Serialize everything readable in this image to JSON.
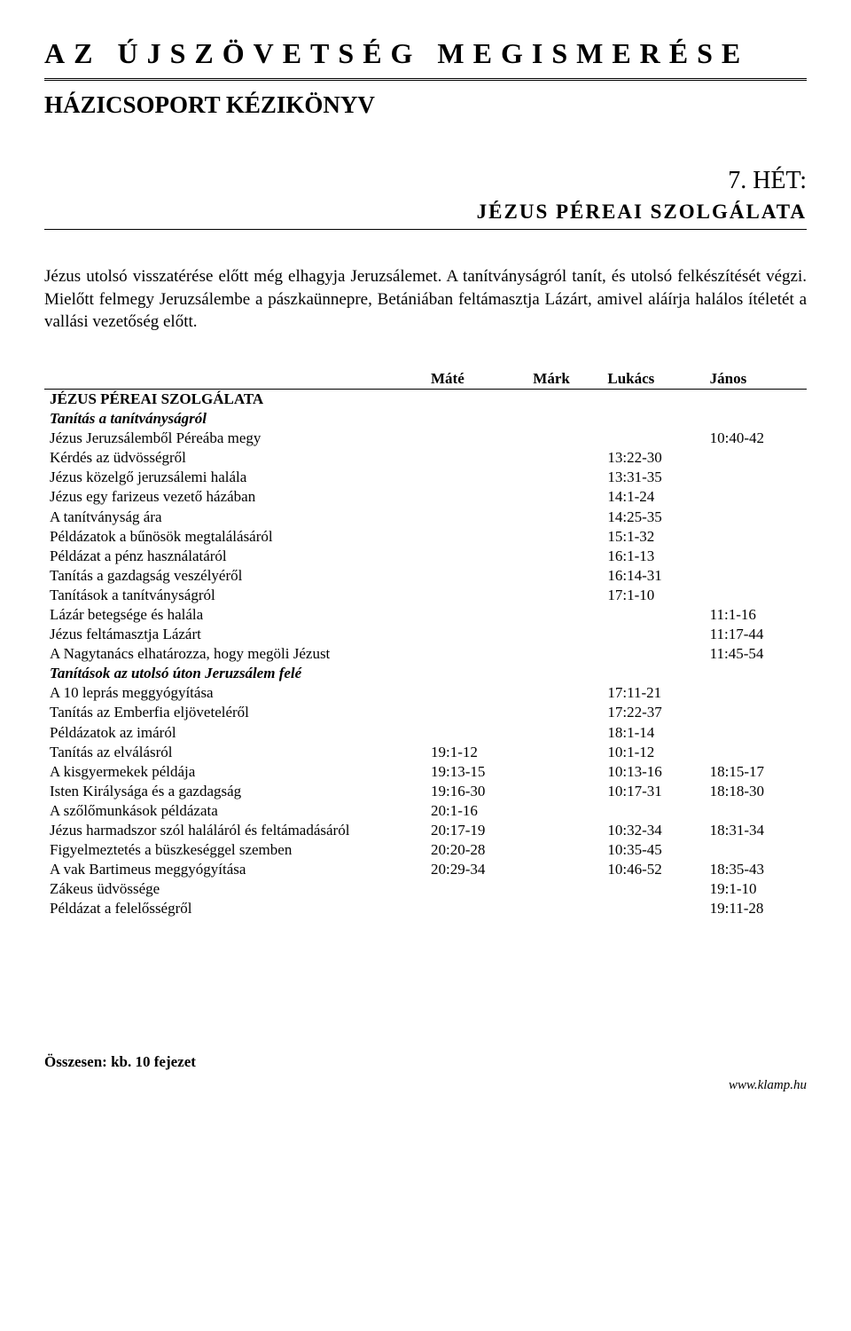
{
  "header": {
    "main_title": "AZ ÚJSZÖVETSÉG MEGISMERÉSE",
    "sub_title": "HÁZICSOPORT KÉZIKÖNYV",
    "week_prefix": "7. ",
    "week_word": "HÉT:",
    "week_subtitle": "JÉZUS PÉREAI SZOLGÁLATA"
  },
  "intro": "Jézus utolsó visszatérése előtt még elhagyja Jeruzsálemet. A tanítványságról tanít, és utolsó felkészítését végzi. Mielőtt felmegy Jeruzsálembe a pászkaünnepre, Betániában feltámasztja Lázárt, amivel aláírja halálos ítéletét a vallási vezetőség előtt.",
  "table": {
    "columns": [
      "",
      "Máté",
      "Márk",
      "Lukács",
      "János"
    ],
    "rows": [
      {
        "kind": "section",
        "desc": "JÉZUS PÉREAI SZOLGÁLATA"
      },
      {
        "kind": "subsection",
        "desc": "Tanítás a tanítványságról"
      },
      {
        "desc": "Jézus Jeruzsálemből Péreába megy",
        "mate": "",
        "mark": "",
        "lukacs": "",
        "janos": "10:40-42"
      },
      {
        "desc": "Kérdés az üdvösségről",
        "mate": "",
        "mark": "",
        "lukacs": "13:22-30",
        "janos": ""
      },
      {
        "desc": "Jézus közelgő jeruzsálemi halála",
        "mate": "",
        "mark": "",
        "lukacs": "13:31-35",
        "janos": ""
      },
      {
        "desc": "Jézus egy farizeus vezető házában",
        "mate": "",
        "mark": "",
        "lukacs": "14:1-24",
        "janos": ""
      },
      {
        "desc": "A tanítványság ára",
        "mate": "",
        "mark": "",
        "lukacs": "14:25-35",
        "janos": ""
      },
      {
        "desc": "Példázatok a bűnösök megtalálásáról",
        "mate": "",
        "mark": "",
        "lukacs": "15:1-32",
        "janos": ""
      },
      {
        "desc": "Példázat a pénz használatáról",
        "mate": "",
        "mark": "",
        "lukacs": "16:1-13",
        "janos": ""
      },
      {
        "desc": "Tanítás a gazdagság veszélyéről",
        "mate": "",
        "mark": "",
        "lukacs": "16:14-31",
        "janos": ""
      },
      {
        "desc": "Tanítások a tanítványságról",
        "mate": "",
        "mark": "",
        "lukacs": "17:1-10",
        "janos": ""
      },
      {
        "desc": "Lázár betegsége és halála",
        "mate": "",
        "mark": "",
        "lukacs": "",
        "janos": "11:1-16"
      },
      {
        "desc": "Jézus feltámasztja Lázárt",
        "mate": "",
        "mark": "",
        "lukacs": "",
        "janos": "11:17-44"
      },
      {
        "desc": "A Nagytanács elhatározza, hogy megöli Jézust",
        "mate": "",
        "mark": "",
        "lukacs": "",
        "janos": "11:45-54"
      },
      {
        "kind": "subsection",
        "desc": "Tanítások az utolsó úton Jeruzsálem felé"
      },
      {
        "desc": "A 10 leprás meggyógyítása",
        "mate": "",
        "mark": "",
        "lukacs": "17:11-21",
        "janos": ""
      },
      {
        "desc": "Tanítás az Emberfia eljöveteléről",
        "mate": "",
        "mark": "",
        "lukacs": "17:22-37",
        "janos": ""
      },
      {
        "desc": "Példázatok az imáról",
        "mate": "",
        "mark": "",
        "lukacs": "18:1-14",
        "janos": ""
      },
      {
        "desc": "Tanítás az elválásról",
        "mate": "19:1-12",
        "mark": "",
        "lukacs": "10:1-12",
        "janos": ""
      },
      {
        "desc": "A kisgyermekek példája",
        "mate": "19:13-15",
        "mark": "",
        "lukacs": "10:13-16",
        "janos": "18:15-17"
      },
      {
        "desc": "Isten Királysága és a gazdagság",
        "mate": "19:16-30",
        "mark": "",
        "lukacs": "10:17-31",
        "janos": "18:18-30"
      },
      {
        "desc": "A szőlőmunkások példázata",
        "mate": "20:1-16",
        "mark": "",
        "lukacs": "",
        "janos": ""
      },
      {
        "desc": "Jézus harmadszor szól haláláról és feltámadásáról",
        "mate": "20:17-19",
        "mark": "",
        "lukacs": "10:32-34",
        "janos": "18:31-34"
      },
      {
        "desc": "Figyelmeztetés a büszkeséggel szemben",
        "mate": "20:20-28",
        "mark": "",
        "lukacs": "10:35-45",
        "janos": ""
      },
      {
        "desc": "A vak Bartimeus meggyógyítása",
        "mate": "20:29-34",
        "mark": "",
        "lukacs": "10:46-52",
        "janos": "18:35-43"
      },
      {
        "desc": "Zákeus üdvössége",
        "mate": "",
        "mark": "",
        "lukacs": "",
        "janos": "19:1-10"
      },
      {
        "desc": "Példázat a felelősségről",
        "mate": "",
        "mark": "",
        "lukacs": "",
        "janos": "19:11-28"
      }
    ]
  },
  "footer": {
    "total": "Összesen: kb. 10 fejezet",
    "url": "www.klamp.hu"
  }
}
